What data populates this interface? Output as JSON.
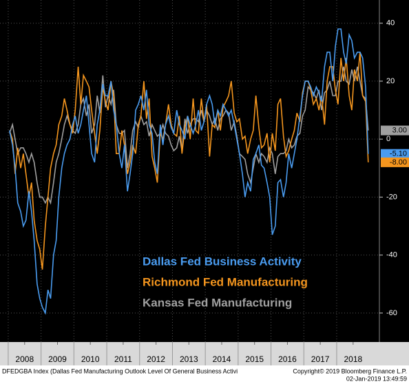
{
  "chart_data": {
    "type": "line",
    "x": [
      2008.04,
      2008.13,
      2008.21,
      2008.29,
      2008.38,
      2008.46,
      2008.54,
      2008.63,
      2008.71,
      2008.79,
      2008.88,
      2008.96,
      2009.04,
      2009.13,
      2009.21,
      2009.29,
      2009.38,
      2009.46,
      2009.54,
      2009.63,
      2009.71,
      2009.79,
      2009.88,
      2009.96,
      2010.04,
      2010.13,
      2010.21,
      2010.29,
      2010.38,
      2010.46,
      2010.54,
      2010.63,
      2010.71,
      2010.79,
      2010.88,
      2010.96,
      2011.04,
      2011.13,
      2011.21,
      2011.29,
      2011.38,
      2011.46,
      2011.54,
      2011.63,
      2011.71,
      2011.79,
      2011.88,
      2011.96,
      2012.04,
      2012.13,
      2012.21,
      2012.29,
      2012.38,
      2012.46,
      2012.54,
      2012.63,
      2012.71,
      2012.79,
      2012.88,
      2012.96,
      2013.04,
      2013.13,
      2013.21,
      2013.29,
      2013.38,
      2013.46,
      2013.54,
      2013.63,
      2013.71,
      2013.79,
      2013.88,
      2013.96,
      2014.04,
      2014.13,
      2014.21,
      2014.29,
      2014.38,
      2014.46,
      2014.54,
      2014.63,
      2014.71,
      2014.79,
      2014.88,
      2014.96,
      2015.04,
      2015.13,
      2015.21,
      2015.29,
      2015.38,
      2015.46,
      2015.54,
      2015.63,
      2015.71,
      2015.79,
      2015.88,
      2015.96,
      2016.04,
      2016.13,
      2016.21,
      2016.29,
      2016.38,
      2016.46,
      2016.54,
      2016.63,
      2016.71,
      2016.79,
      2016.88,
      2016.96,
      2017.04,
      2017.13,
      2017.21,
      2017.29,
      2017.38,
      2017.46,
      2017.54,
      2017.63,
      2017.71,
      2017.79,
      2017.88,
      2017.96,
      2018.04,
      2018.13,
      2018.21,
      2018.29,
      2018.38,
      2018.46,
      2018.54,
      2018.63,
      2018.71,
      2018.79,
      2018.88,
      2018.96
    ],
    "series": [
      {
        "name": "Dallas Fed Business Activity",
        "color": "#4a9cf0",
        "last_label": "-5.10",
        "values": [
          3,
          -2,
          -10,
          -22,
          -25,
          -30,
          -28,
          -18,
          -25,
          -35,
          -50,
          -55,
          -58,
          -60,
          -52,
          -55,
          -40,
          -35,
          -20,
          -10,
          -5,
          -2,
          0,
          5,
          8,
          2,
          5,
          10,
          15,
          5,
          -5,
          -8,
          5,
          10,
          19,
          15,
          15,
          20,
          10,
          5,
          -5,
          -10,
          -2,
          -18,
          -12,
          -5,
          10,
          12,
          15,
          10,
          17,
          5,
          2,
          -8,
          -12,
          5,
          -2,
          5,
          8,
          4,
          2,
          10,
          5,
          3,
          0,
          8,
          5,
          2,
          5,
          10,
          3,
          6,
          12,
          15,
          12,
          5,
          10,
          8,
          12,
          10,
          8,
          10,
          5,
          0,
          -5,
          -12,
          -20,
          -15,
          -18,
          -7,
          -5,
          -2,
          -9,
          -10,
          -15,
          -20,
          -33,
          -30,
          -15,
          -14,
          -20,
          -15,
          -5,
          -10,
          -5,
          0,
          8,
          15,
          20,
          20,
          18,
          15,
          18,
          16,
          13,
          25,
          30,
          30,
          20,
          32,
          38,
          38,
          30,
          26,
          36,
          34,
          28,
          30,
          30,
          28,
          18,
          -5.1
        ]
      },
      {
        "name": "Richmond Fed Manufacturing",
        "color": "#f5961e",
        "last_label": "-8.00",
        "values": [
          3,
          0,
          -12,
          -3,
          -10,
          -5,
          -12,
          -20,
          -15,
          -28,
          -35,
          -38,
          -45,
          -30,
          -20,
          -10,
          -5,
          -2,
          5,
          8,
          14,
          10,
          5,
          2,
          10,
          25,
          12,
          22,
          20,
          18,
          10,
          2,
          -5,
          3,
          18,
          13,
          10,
          20,
          15,
          -5,
          -5,
          3,
          -2,
          -12,
          -8,
          -2,
          -5,
          5,
          8,
          20,
          7,
          14,
          -6,
          -10,
          -15,
          2,
          0,
          5,
          12,
          5,
          2,
          1,
          8,
          -5,
          4,
          8,
          0,
          14,
          3,
          2,
          14,
          6,
          12,
          -6,
          5,
          4,
          10,
          3,
          11,
          13,
          15,
          20,
          9,
          6,
          7,
          0,
          1,
          -5,
          0,
          3,
          15,
          4,
          -3,
          -2,
          2,
          -8,
          2,
          -4,
          12,
          14,
          1,
          -6,
          -4,
          0,
          3,
          9,
          6,
          16,
          20,
          20,
          17,
          12,
          14,
          10,
          15,
          5,
          20,
          25,
          25,
          17,
          12,
          28,
          20,
          28,
          15,
          10,
          24,
          20,
          30,
          15,
          13,
          -8
        ]
      },
      {
        "name": "Kansas Fed Manufacturing",
        "color": "#a0a0a0",
        "last_label": "3.00",
        "values": [
          2,
          5,
          0,
          -5,
          -3,
          -3,
          -5,
          -8,
          -5,
          -8,
          -15,
          -20,
          -20,
          -22,
          -20,
          -22,
          -15,
          -8,
          -5,
          0,
          5,
          8,
          5,
          3,
          2,
          5,
          12,
          14,
          8,
          12,
          2,
          5,
          15,
          9,
          22,
          11,
          15,
          12,
          17,
          5,
          2,
          2,
          3,
          -10,
          -5,
          3,
          6,
          4,
          8,
          5,
          6,
          1,
          5,
          3,
          1,
          2,
          5,
          2,
          1,
          -2,
          -4,
          -3,
          1,
          -4,
          7,
          2,
          5,
          7,
          7,
          6,
          10,
          6,
          10,
          8,
          5,
          7,
          3,
          7,
          8,
          10,
          9,
          3,
          6,
          1,
          -5,
          -6,
          -7,
          -12,
          -15,
          -10,
          -5,
          -8,
          -5,
          -6,
          -8,
          -3,
          -5,
          -12,
          -6,
          -5,
          -5,
          -4,
          0,
          -3,
          -2,
          1,
          2,
          8,
          10,
          18,
          17,
          16,
          14,
          17,
          10,
          16,
          17,
          20,
          15,
          15,
          20,
          20,
          25,
          20,
          19,
          24,
          20,
          25,
          20,
          15,
          14,
          3
        ]
      }
    ],
    "xlim": [
      2007.75,
      2019.3
    ],
    "xticks": [
      {
        "value": 2008.5,
        "label": "2008"
      },
      {
        "value": 2009.5,
        "label": "2009"
      },
      {
        "value": 2010.5,
        "label": "2010"
      },
      {
        "value": 2011.5,
        "label": "2011"
      },
      {
        "value": 2012.5,
        "label": "2012"
      },
      {
        "value": 2013.5,
        "label": "2013"
      },
      {
        "value": 2014.5,
        "label": "2014"
      },
      {
        "value": 2015.5,
        "label": "2015"
      },
      {
        "value": 2016.5,
        "label": "2016"
      },
      {
        "value": 2017.5,
        "label": "2017"
      },
      {
        "value": 2018.5,
        "label": "2018"
      }
    ],
    "ylim": [
      -70,
      48
    ],
    "yticks": [
      -60,
      -40,
      -20,
      0,
      20,
      40
    ],
    "grid": true,
    "legend_position": "lower-center",
    "footer": {
      "source": "DFEDGBA Index (Dallas Fed Manufacturing Outlook Level Of General Business Activi",
      "copyright": "Copyright© 2019 Bloomberg Finance L.P.",
      "timestamp": "02-Jan-2019 13:49:59"
    }
  }
}
